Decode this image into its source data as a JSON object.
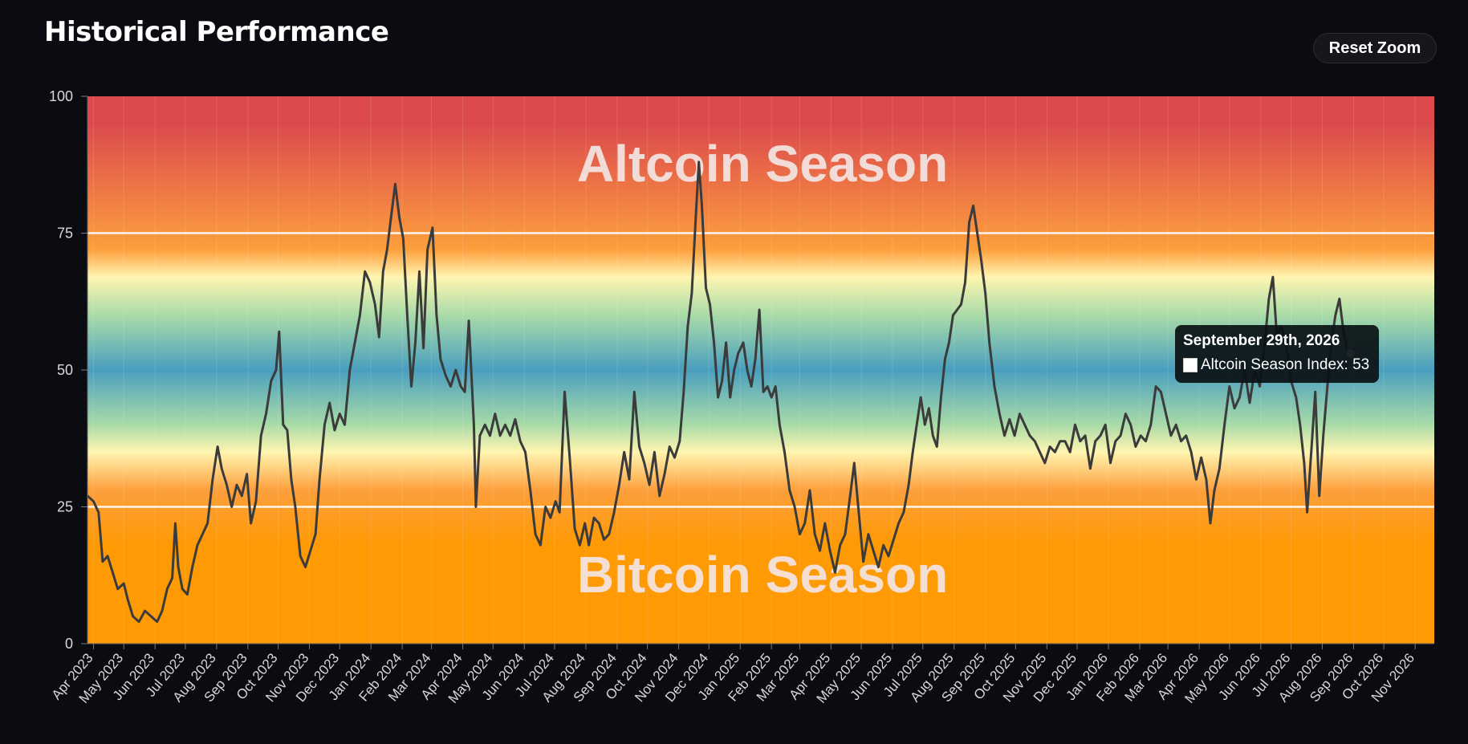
{
  "header": {
    "title": "Historical Performance",
    "reset_zoom_label": "Reset Zoom"
  },
  "tooltip": {
    "date": "September 29th, 2026",
    "series_label": "Altcoin Season Index: 53"
  },
  "colors": {
    "band_top": "#dc4a4e",
    "band_orange": "#fd9f3c",
    "band_yellow": "#fff5b0",
    "band_green": "#a9dba8",
    "band_blue": "#4a9fbf",
    "band_bottom": "#fe9a04",
    "line": "#3b3b3b"
  },
  "chart_data": {
    "type": "line",
    "annotations": {
      "top": "Altcoin Season",
      "bottom": "Bitcoin Season"
    },
    "ylim": [
      0,
      100
    ],
    "yticks": [
      0,
      25,
      50,
      75,
      100
    ],
    "reference_lines": [
      25,
      75
    ],
    "x_range": [
      "2023-03-26",
      "2026-11-20"
    ],
    "x_tick_labels": [
      "Apr 2023",
      "May 2023",
      "Jun 2023",
      "Jul 2023",
      "Aug 2023",
      "Sep 2023",
      "Oct 2023",
      "Nov 2023",
      "Dec 2023",
      "Jan 2024",
      "Feb 2024",
      "Mar 2024",
      "Apr 2024",
      "May 2024",
      "Jun 2024",
      "Jul 2024",
      "Aug 2024",
      "Sep 2024",
      "Oct 2024",
      "Nov 2024",
      "Dec 2024",
      "Jan 2025",
      "Feb 2025",
      "Mar 2025",
      "Apr 2025",
      "May 2025",
      "Jun 2025",
      "Jul 2025",
      "Aug 2025",
      "Sep 2025",
      "Oct 2025",
      "Nov 2025",
      "Dec 2025",
      "Jan 2026",
      "Feb 2026",
      "Mar 2026",
      "Apr 2026",
      "May 2026",
      "Jun 2026",
      "Jul 2026",
      "Aug 2026",
      "Sep 2026",
      "Oct 2026",
      "Nov 2026"
    ],
    "series": [
      {
        "name": "Altcoin Season Index",
        "points": [
          [
            "2023-03-26",
            27
          ],
          [
            "2023-04-01",
            26
          ],
          [
            "2023-04-06",
            24
          ],
          [
            "2023-04-10",
            15
          ],
          [
            "2023-04-15",
            16
          ],
          [
            "2023-04-20",
            13
          ],
          [
            "2023-04-25",
            10
          ],
          [
            "2023-05-01",
            11
          ],
          [
            "2023-05-05",
            8
          ],
          [
            "2023-05-10",
            5
          ],
          [
            "2023-05-16",
            4
          ],
          [
            "2023-05-22",
            6
          ],
          [
            "2023-05-28",
            5
          ],
          [
            "2023-06-03",
            4
          ],
          [
            "2023-06-08",
            6
          ],
          [
            "2023-06-13",
            10
          ],
          [
            "2023-06-18",
            12
          ],
          [
            "2023-06-21",
            22
          ],
          [
            "2023-06-24",
            14
          ],
          [
            "2023-06-28",
            10
          ],
          [
            "2023-07-03",
            9
          ],
          [
            "2023-07-08",
            14
          ],
          [
            "2023-07-13",
            18
          ],
          [
            "2023-07-18",
            20
          ],
          [
            "2023-07-23",
            22
          ],
          [
            "2023-07-28",
            30
          ],
          [
            "2023-08-02",
            36
          ],
          [
            "2023-08-06",
            32
          ],
          [
            "2023-08-11",
            29
          ],
          [
            "2023-08-16",
            25
          ],
          [
            "2023-08-21",
            29
          ],
          [
            "2023-08-26",
            27
          ],
          [
            "2023-08-31",
            31
          ],
          [
            "2023-09-04",
            22
          ],
          [
            "2023-09-09",
            26
          ],
          [
            "2023-09-14",
            38
          ],
          [
            "2023-09-19",
            42
          ],
          [
            "2023-09-24",
            48
          ],
          [
            "2023-09-29",
            50
          ],
          [
            "2023-10-02",
            57
          ],
          [
            "2023-10-06",
            40
          ],
          [
            "2023-10-10",
            39
          ],
          [
            "2023-10-14",
            30
          ],
          [
            "2023-10-18",
            25
          ],
          [
            "2023-10-23",
            16
          ],
          [
            "2023-10-28",
            14
          ],
          [
            "2023-11-02",
            17
          ],
          [
            "2023-11-07",
            20
          ],
          [
            "2023-11-11",
            30
          ],
          [
            "2023-11-16",
            40
          ],
          [
            "2023-11-21",
            44
          ],
          [
            "2023-11-26",
            39
          ],
          [
            "2023-12-01",
            42
          ],
          [
            "2023-12-06",
            40
          ],
          [
            "2023-12-11",
            50
          ],
          [
            "2023-12-16",
            55
          ],
          [
            "2023-12-21",
            60
          ],
          [
            "2023-12-26",
            68
          ],
          [
            "2023-12-31",
            66
          ],
          [
            "2024-01-05",
            62
          ],
          [
            "2024-01-09",
            56
          ],
          [
            "2024-01-13",
            68
          ],
          [
            "2024-01-17",
            72
          ],
          [
            "2024-01-21",
            78
          ],
          [
            "2024-01-25",
            84
          ],
          [
            "2024-01-29",
            78
          ],
          [
            "2024-02-02",
            74
          ],
          [
            "2024-02-06",
            60
          ],
          [
            "2024-02-10",
            47
          ],
          [
            "2024-02-14",
            55
          ],
          [
            "2024-02-18",
            68
          ],
          [
            "2024-02-22",
            54
          ],
          [
            "2024-02-26",
            72
          ],
          [
            "2024-03-02",
            76
          ],
          [
            "2024-03-06",
            60
          ],
          [
            "2024-03-10",
            52
          ],
          [
            "2024-03-15",
            49
          ],
          [
            "2024-03-20",
            47
          ],
          [
            "2024-03-25",
            50
          ],
          [
            "2024-03-30",
            47
          ],
          [
            "2024-04-03",
            46
          ],
          [
            "2024-04-07",
            59
          ],
          [
            "2024-04-12",
            40
          ],
          [
            "2024-04-14",
            25
          ],
          [
            "2024-04-18",
            38
          ],
          [
            "2024-04-23",
            40
          ],
          [
            "2024-04-28",
            38
          ],
          [
            "2024-05-03",
            42
          ],
          [
            "2024-05-08",
            38
          ],
          [
            "2024-05-13",
            40
          ],
          [
            "2024-05-18",
            38
          ],
          [
            "2024-05-23",
            41
          ],
          [
            "2024-05-28",
            37
          ],
          [
            "2024-06-02",
            35
          ],
          [
            "2024-06-07",
            28
          ],
          [
            "2024-06-12",
            20
          ],
          [
            "2024-06-17",
            18
          ],
          [
            "2024-06-22",
            25
          ],
          [
            "2024-06-27",
            23
          ],
          [
            "2024-07-02",
            26
          ],
          [
            "2024-07-06",
            24
          ],
          [
            "2024-07-11",
            46
          ],
          [
            "2024-07-16",
            34
          ],
          [
            "2024-07-21",
            21
          ],
          [
            "2024-07-26",
            18
          ],
          [
            "2024-07-31",
            22
          ],
          [
            "2024-08-04",
            18
          ],
          [
            "2024-08-09",
            23
          ],
          [
            "2024-08-14",
            22
          ],
          [
            "2024-08-19",
            19
          ],
          [
            "2024-08-24",
            20
          ],
          [
            "2024-08-29",
            24
          ],
          [
            "2024-09-03",
            29
          ],
          [
            "2024-09-08",
            35
          ],
          [
            "2024-09-13",
            30
          ],
          [
            "2024-09-18",
            46
          ],
          [
            "2024-09-23",
            36
          ],
          [
            "2024-09-28",
            33
          ],
          [
            "2024-10-03",
            29
          ],
          [
            "2024-10-08",
            35
          ],
          [
            "2024-10-13",
            27
          ],
          [
            "2024-10-18",
            31
          ],
          [
            "2024-10-23",
            36
          ],
          [
            "2024-10-28",
            34
          ],
          [
            "2024-11-02",
            37
          ],
          [
            "2024-11-06",
            46
          ],
          [
            "2024-11-10",
            58
          ],
          [
            "2024-11-14",
            64
          ],
          [
            "2024-11-18",
            78
          ],
          [
            "2024-11-21",
            88
          ],
          [
            "2024-11-24",
            80
          ],
          [
            "2024-11-28",
            65
          ],
          [
            "2024-12-02",
            62
          ],
          [
            "2024-12-06",
            55
          ],
          [
            "2024-12-10",
            45
          ],
          [
            "2024-12-14",
            48
          ],
          [
            "2024-12-18",
            55
          ],
          [
            "2024-12-22",
            45
          ],
          [
            "2024-12-26",
            50
          ],
          [
            "2024-12-30",
            53
          ],
          [
            "2025-01-04",
            55
          ],
          [
            "2025-01-08",
            50
          ],
          [
            "2025-01-12",
            47
          ],
          [
            "2025-01-16",
            52
          ],
          [
            "2025-01-20",
            61
          ],
          [
            "2025-01-24",
            46
          ],
          [
            "2025-01-28",
            47
          ],
          [
            "2025-02-01",
            45
          ],
          [
            "2025-02-05",
            47
          ],
          [
            "2025-02-09",
            40
          ],
          [
            "2025-02-14",
            35
          ],
          [
            "2025-02-19",
            28
          ],
          [
            "2025-02-24",
            25
          ],
          [
            "2025-03-01",
            20
          ],
          [
            "2025-03-06",
            22
          ],
          [
            "2025-03-11",
            28
          ],
          [
            "2025-03-16",
            20
          ],
          [
            "2025-03-21",
            17
          ],
          [
            "2025-03-26",
            22
          ],
          [
            "2025-03-31",
            17
          ],
          [
            "2025-04-05",
            13
          ],
          [
            "2025-04-10",
            18
          ],
          [
            "2025-04-15",
            20
          ],
          [
            "2025-04-20",
            27
          ],
          [
            "2025-04-24",
            33
          ],
          [
            "2025-04-28",
            25
          ],
          [
            "2025-05-03",
            15
          ],
          [
            "2025-05-08",
            20
          ],
          [
            "2025-05-13",
            17
          ],
          [
            "2025-05-18",
            14
          ],
          [
            "2025-05-23",
            18
          ],
          [
            "2025-05-28",
            16
          ],
          [
            "2025-06-02",
            19
          ],
          [
            "2025-06-07",
            22
          ],
          [
            "2025-06-12",
            24
          ],
          [
            "2025-06-17",
            29
          ],
          [
            "2025-06-21",
            35
          ],
          [
            "2025-06-25",
            40
          ],
          [
            "2025-06-29",
            45
          ],
          [
            "2025-07-03",
            40
          ],
          [
            "2025-07-07",
            43
          ],
          [
            "2025-07-11",
            38
          ],
          [
            "2025-07-15",
            36
          ],
          [
            "2025-07-19",
            45
          ],
          [
            "2025-07-23",
            52
          ],
          [
            "2025-07-27",
            55
          ],
          [
            "2025-07-31",
            60
          ],
          [
            "2025-08-04",
            61
          ],
          [
            "2025-08-08",
            62
          ],
          [
            "2025-08-12",
            66
          ],
          [
            "2025-08-16",
            77
          ],
          [
            "2025-08-20",
            80
          ],
          [
            "2025-08-24",
            75
          ],
          [
            "2025-08-28",
            70
          ],
          [
            "2025-09-01",
            64
          ],
          [
            "2025-09-05",
            55
          ],
          [
            "2025-09-10",
            47
          ],
          [
            "2025-09-15",
            42
          ],
          [
            "2025-09-20",
            38
          ],
          [
            "2025-09-25",
            41
          ],
          [
            "2025-09-30",
            38
          ],
          [
            "2025-10-05",
            42
          ],
          [
            "2025-10-10",
            40
          ],
          [
            "2025-10-15",
            38
          ],
          [
            "2025-10-20",
            37
          ],
          [
            "2025-10-25",
            35
          ],
          [
            "2025-10-30",
            33
          ],
          [
            "2025-11-04",
            36
          ],
          [
            "2025-11-09",
            35
          ],
          [
            "2025-11-14",
            37
          ],
          [
            "2025-11-19",
            37
          ],
          [
            "2025-11-24",
            35
          ],
          [
            "2025-11-29",
            40
          ],
          [
            "2025-12-04",
            37
          ],
          [
            "2025-12-09",
            38
          ],
          [
            "2025-12-14",
            32
          ],
          [
            "2025-12-19",
            37
          ],
          [
            "2025-12-24",
            38
          ],
          [
            "2025-12-29",
            40
          ],
          [
            "2026-01-03",
            33
          ],
          [
            "2026-01-08",
            37
          ],
          [
            "2026-01-13",
            38
          ],
          [
            "2026-01-18",
            42
          ],
          [
            "2026-01-23",
            40
          ],
          [
            "2026-01-28",
            36
          ],
          [
            "2026-02-02",
            38
          ],
          [
            "2026-02-07",
            37
          ],
          [
            "2026-02-12",
            40
          ],
          [
            "2026-02-17",
            47
          ],
          [
            "2026-02-22",
            46
          ],
          [
            "2026-02-27",
            42
          ],
          [
            "2026-03-04",
            38
          ],
          [
            "2026-03-09",
            40
          ],
          [
            "2026-03-14",
            37
          ],
          [
            "2026-03-19",
            38
          ],
          [
            "2026-03-24",
            35
          ],
          [
            "2026-03-29",
            30
          ],
          [
            "2026-04-03",
            34
          ],
          [
            "2026-04-08",
            30
          ],
          [
            "2026-04-12",
            22
          ],
          [
            "2026-04-16",
            28
          ],
          [
            "2026-04-21",
            32
          ],
          [
            "2026-04-26",
            40
          ],
          [
            "2026-05-01",
            47
          ],
          [
            "2026-05-06",
            43
          ],
          [
            "2026-05-11",
            45
          ],
          [
            "2026-05-16",
            50
          ],
          [
            "2026-05-21",
            44
          ],
          [
            "2026-05-26",
            50
          ],
          [
            "2026-05-31",
            47
          ],
          [
            "2026-06-05",
            55
          ],
          [
            "2026-06-09",
            63
          ],
          [
            "2026-06-13",
            67
          ],
          [
            "2026-06-17",
            56
          ],
          [
            "2026-06-21",
            58
          ],
          [
            "2026-06-26",
            55
          ],
          [
            "2026-07-01",
            48
          ],
          [
            "2026-07-06",
            45
          ],
          [
            "2026-07-10",
            40
          ],
          [
            "2026-07-14",
            33
          ],
          [
            "2026-07-17",
            24
          ],
          [
            "2026-07-21",
            35
          ],
          [
            "2026-07-25",
            46
          ],
          [
            "2026-07-29",
            27
          ],
          [
            "2026-08-02",
            38
          ],
          [
            "2026-08-06",
            47
          ],
          [
            "2026-08-10",
            55
          ],
          [
            "2026-08-14",
            60
          ],
          [
            "2026-08-18",
            63
          ],
          [
            "2026-08-22",
            57
          ],
          [
            "2026-08-26",
            53
          ],
          [
            "2026-08-29",
            53
          ]
        ]
      }
    ]
  }
}
